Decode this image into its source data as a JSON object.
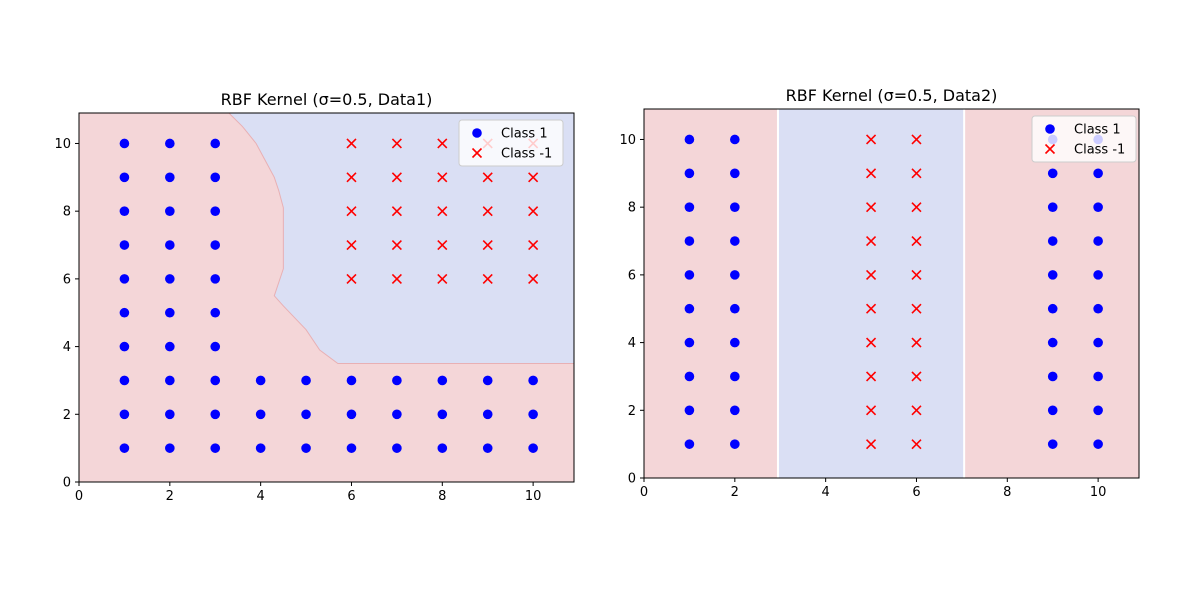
{
  "chart_data": [
    {
      "type": "scatter",
      "title": "RBF Kernel (σ=0.5, Data1)",
      "xlabel": "",
      "ylabel": "",
      "xlim": [
        0,
        10.9
      ],
      "ylim": [
        0,
        10.9
      ],
      "xticks": [
        0,
        2,
        4,
        6,
        8,
        10
      ],
      "yticks": [
        0,
        2,
        4,
        6,
        8,
        10
      ],
      "grid": false,
      "legend_position": "top-right",
      "colors": {
        "region_pos": "#f4d6d8",
        "region_neg": "#dadff4",
        "class_pos": "#0000ff",
        "class_neg": "#ff0000"
      },
      "decision_boundary": [
        [
          3.3,
          10.9
        ],
        [
          3.6,
          10.5
        ],
        [
          3.9,
          10.0
        ],
        [
          4.1,
          9.5
        ],
        [
          4.3,
          9.0
        ],
        [
          4.4,
          8.6
        ],
        [
          4.5,
          8.1
        ],
        [
          4.5,
          7.5
        ],
        [
          4.5,
          7.0
        ],
        [
          4.5,
          6.3
        ],
        [
          4.3,
          5.5
        ],
        [
          4.5,
          5.2
        ],
        [
          5.0,
          4.5
        ],
        [
          5.3,
          3.9
        ],
        [
          5.7,
          3.5
        ],
        [
          10.9,
          3.5
        ]
      ],
      "series": [
        {
          "name": "Class 1",
          "marker": "circle",
          "points": [
            [
              1,
              1
            ],
            [
              1,
              2
            ],
            [
              1,
              3
            ],
            [
              1,
              4
            ],
            [
              1,
              5
            ],
            [
              1,
              6
            ],
            [
              1,
              7
            ],
            [
              1,
              8
            ],
            [
              1,
              9
            ],
            [
              1,
              10
            ],
            [
              2,
              1
            ],
            [
              2,
              2
            ],
            [
              2,
              3
            ],
            [
              2,
              4
            ],
            [
              2,
              5
            ],
            [
              2,
              6
            ],
            [
              2,
              7
            ],
            [
              2,
              8
            ],
            [
              2,
              9
            ],
            [
              2,
              10
            ],
            [
              3,
              1
            ],
            [
              3,
              2
            ],
            [
              3,
              3
            ],
            [
              3,
              4
            ],
            [
              3,
              5
            ],
            [
              3,
              6
            ],
            [
              3,
              7
            ],
            [
              3,
              8
            ],
            [
              3,
              9
            ],
            [
              3,
              10
            ],
            [
              4,
              1
            ],
            [
              4,
              2
            ],
            [
              4,
              3
            ],
            [
              5,
              1
            ],
            [
              5,
              2
            ],
            [
              5,
              3
            ],
            [
              6,
              1
            ],
            [
              6,
              2
            ],
            [
              6,
              3
            ],
            [
              7,
              1
            ],
            [
              7,
              2
            ],
            [
              7,
              3
            ],
            [
              8,
              1
            ],
            [
              8,
              2
            ],
            [
              8,
              3
            ],
            [
              9,
              1
            ],
            [
              9,
              2
            ],
            [
              9,
              3
            ],
            [
              10,
              1
            ],
            [
              10,
              2
            ],
            [
              10,
              3
            ]
          ]
        },
        {
          "name": "Class -1",
          "marker": "x",
          "points": [
            [
              6,
              6
            ],
            [
              6,
              7
            ],
            [
              6,
              8
            ],
            [
              6,
              9
            ],
            [
              6,
              10
            ],
            [
              7,
              6
            ],
            [
              7,
              7
            ],
            [
              7,
              8
            ],
            [
              7,
              9
            ],
            [
              7,
              10
            ],
            [
              8,
              6
            ],
            [
              8,
              7
            ],
            [
              8,
              8
            ],
            [
              8,
              9
            ],
            [
              8,
              10
            ],
            [
              9,
              6
            ],
            [
              9,
              7
            ],
            [
              9,
              8
            ],
            [
              9,
              9
            ],
            [
              9,
              10
            ],
            [
              10,
              6
            ],
            [
              10,
              7
            ],
            [
              10,
              8
            ],
            [
              10,
              9
            ],
            [
              10,
              10
            ]
          ]
        }
      ]
    },
    {
      "type": "scatter",
      "title": "RBF Kernel (σ=0.5, Data2)",
      "xlabel": "",
      "ylabel": "",
      "xlim": [
        0,
        10.9
      ],
      "ylim": [
        0,
        10.9
      ],
      "xticks": [
        0,
        2,
        4,
        6,
        8,
        10
      ],
      "yticks": [
        0,
        2,
        4,
        6,
        8,
        10
      ],
      "grid": false,
      "legend_position": "top-right",
      "colors": {
        "region_pos": "#f4d6d8",
        "region_neg": "#dadff4",
        "class_pos": "#0000ff",
        "class_neg": "#ff0000"
      },
      "neg_region_x": [
        2.95,
        7.05
      ],
      "series": [
        {
          "name": "Class 1",
          "marker": "circle",
          "points": [
            [
              1,
              1
            ],
            [
              1,
              2
            ],
            [
              1,
              3
            ],
            [
              1,
              4
            ],
            [
              1,
              5
            ],
            [
              1,
              6
            ],
            [
              1,
              7
            ],
            [
              1,
              8
            ],
            [
              1,
              9
            ],
            [
              1,
              10
            ],
            [
              2,
              1
            ],
            [
              2,
              2
            ],
            [
              2,
              3
            ],
            [
              2,
              4
            ],
            [
              2,
              5
            ],
            [
              2,
              6
            ],
            [
              2,
              7
            ],
            [
              2,
              8
            ],
            [
              2,
              9
            ],
            [
              2,
              10
            ],
            [
              9,
              1
            ],
            [
              9,
              2
            ],
            [
              9,
              3
            ],
            [
              9,
              4
            ],
            [
              9,
              5
            ],
            [
              9,
              6
            ],
            [
              9,
              7
            ],
            [
              9,
              8
            ],
            [
              9,
              9
            ],
            [
              9,
              10
            ],
            [
              10,
              1
            ],
            [
              10,
              2
            ],
            [
              10,
              3
            ],
            [
              10,
              4
            ],
            [
              10,
              5
            ],
            [
              10,
              6
            ],
            [
              10,
              7
            ],
            [
              10,
              8
            ],
            [
              10,
              9
            ],
            [
              10,
              10
            ]
          ]
        },
        {
          "name": "Class -1",
          "marker": "x",
          "points": [
            [
              5,
              1
            ],
            [
              5,
              2
            ],
            [
              5,
              3
            ],
            [
              5,
              4
            ],
            [
              5,
              5
            ],
            [
              5,
              6
            ],
            [
              5,
              7
            ],
            [
              5,
              8
            ],
            [
              5,
              9
            ],
            [
              5,
              10
            ],
            [
              6,
              1
            ],
            [
              6,
              2
            ],
            [
              6,
              3
            ],
            [
              6,
              4
            ],
            [
              6,
              5
            ],
            [
              6,
              6
            ],
            [
              6,
              7
            ],
            [
              6,
              8
            ],
            [
              6,
              9
            ],
            [
              6,
              10
            ]
          ]
        }
      ]
    }
  ]
}
